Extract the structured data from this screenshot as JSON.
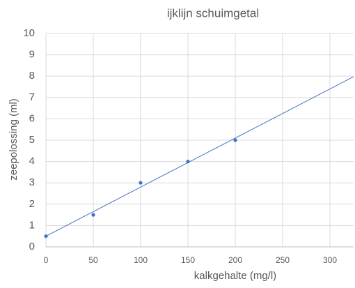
{
  "chart_data": {
    "type": "scatter",
    "title": "ijklijn schuimgetal",
    "x_label": "kalkgehalte (mg/l)",
    "y_label": "zeepolossing (ml)",
    "x": [
      0,
      50,
      100,
      150,
      200
    ],
    "values": [
      0.5,
      1.5,
      3,
      4,
      5
    ],
    "color": "#4472c4",
    "trendline": {
      "x": [
        0,
        325
      ],
      "values": [
        0.5,
        7.975
      ],
      "color": "#4472c4"
    },
    "xlim": [
      0,
      325
    ],
    "xticks": [
      0,
      50,
      100,
      150,
      200,
      250,
      300
    ],
    "ylim": [
      0,
      10
    ],
    "yticks": [
      0,
      1,
      2,
      3,
      4,
      5,
      6,
      7,
      8,
      9,
      10
    ],
    "grid": true
  }
}
